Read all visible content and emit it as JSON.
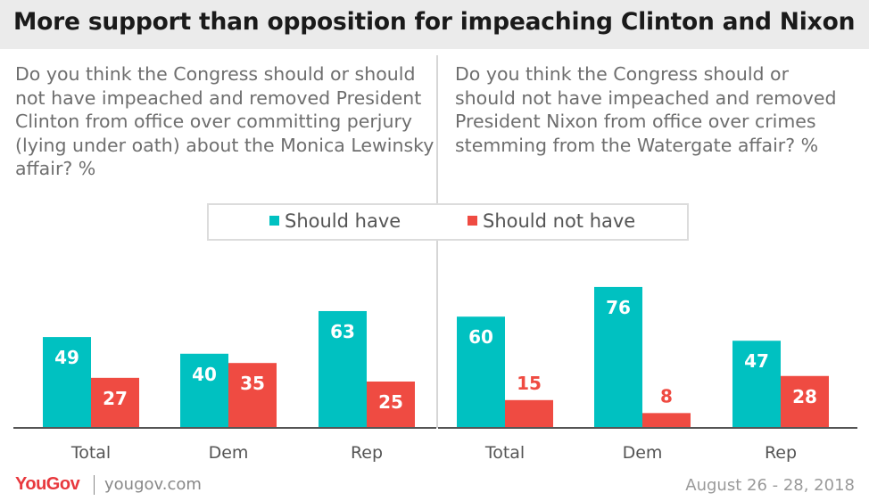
{
  "title": "More support than opposition for impeaching Clinton and Nixon",
  "questions": {
    "left": "Do you think the Congress should or should not have impeached and removed President Clinton from office over committing perjury (lying under oath) about the Monica Lewinsky affair? %",
    "right": "Do you think the Congress should or should not have impeached and removed President Nixon from office over crimes stemming from the Watergate affair? %"
  },
  "legend": {
    "should": "Should have",
    "should_not": "Should not have"
  },
  "colors": {
    "should": "#00c1c1",
    "should_not": "#ef4b42",
    "axis": "#555555",
    "label_dark": "#ef4b42",
    "label_light": "#ffffff"
  },
  "chart_data": [
    {
      "type": "bar",
      "categories": [
        "Total",
        "Dem",
        "Rep"
      ],
      "series": [
        {
          "name": "Should have",
          "values": [
            49,
            40,
            63
          ]
        },
        {
          "name": "Should not have",
          "values": [
            27,
            35,
            25
          ]
        }
      ],
      "ylim": [
        0,
        80
      ],
      "legend": "top-center",
      "grid": false
    },
    {
      "type": "bar",
      "categories": [
        "Total",
        "Dem",
        "Rep"
      ],
      "series": [
        {
          "name": "Should have",
          "values": [
            60,
            76,
            47
          ]
        },
        {
          "name": "Should not have",
          "values": [
            15,
            8,
            28
          ]
        }
      ],
      "ylim": [
        0,
        80
      ],
      "legend": "top-center",
      "grid": false
    }
  ],
  "footer": {
    "brand": "YouGov",
    "site": "yougov.com",
    "date": "August 26 - 28, 2018"
  }
}
